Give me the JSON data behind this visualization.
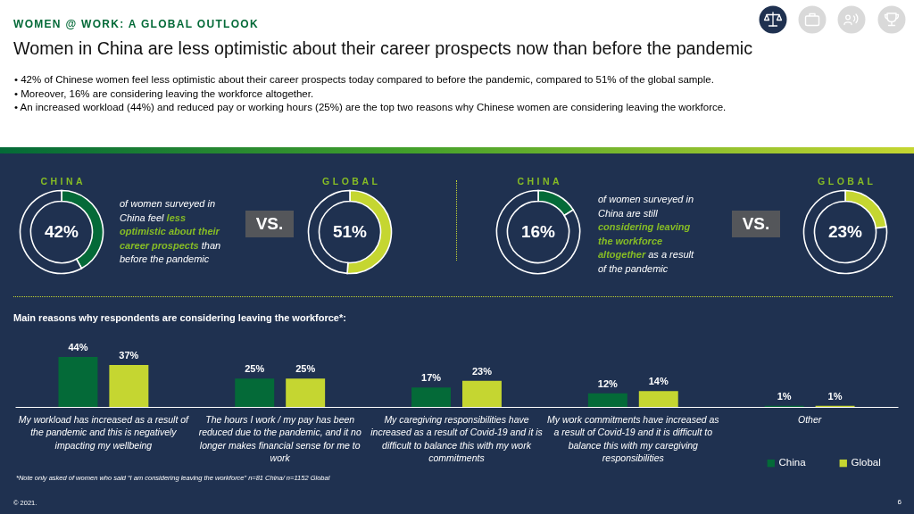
{
  "chart_data": [
    {
      "type": "other",
      "subtitle": "WOMEN @ WORK: A GLOBAL OUTLOOK",
      "title": "Women in China are less optimistic about their career prospects now than before the pandemic",
      "annotations": [
        "• 42% of Chinese women feel less optimistic about their career prospects today compared to before the pandemic, compared to 51% of the global sample.",
        "• Moreover, 16% are considering leaving the workforce altogether.",
        "• An increased workload (44%) and reduced pay or working hours (25%) are the top two reasons why Chinese women are considering leaving the workforce."
      ]
    },
    {
      "type": "donut",
      "title": "CHINA",
      "categories": [
        null,
        null
      ],
      "values": [
        42,
        58
      ],
      "colors": [
        "#046a38",
        "#1f3150"
      ],
      "value_labels": [
        "42%",
        null
      ],
      "annotations": [
        "of women surveyed in China feel",
        "less optimistic about their career prospects",
        "than before the pandemic"
      ]
    },
    {
      "type": "donut",
      "title": "GLOBAL",
      "categories": [
        null,
        null
      ],
      "values": [
        51,
        49
      ],
      "colors": [
        "#c5d631",
        "#1f3150"
      ],
      "value_labels": [
        "51%",
        null
      ],
      "annotations": [
        "VS."
      ]
    },
    {
      "type": "donut",
      "title": "CHINA",
      "categories": [
        null,
        null
      ],
      "values": [
        16,
        84
      ],
      "colors": [
        "#046a38",
        "#1f3150"
      ],
      "value_labels": [
        "16%",
        null
      ],
      "annotations": [
        "of women surveyed in China are still",
        "considering leaving the workforce altogether",
        "as a result of the pandemic"
      ]
    },
    {
      "type": "donut",
      "title": "GLOBAL",
      "categories": [
        null,
        null
      ],
      "values": [
        23,
        77
      ],
      "colors": [
        "#c5d631",
        "#1f3150"
      ],
      "value_labels": [
        "23%",
        null
      ],
      "annotations": [
        "VS."
      ]
    },
    {
      "type": "bar",
      "title": "Main reasons why respondents are considering leaving the workforce*:",
      "categories": [
        "My workload has increased as a result of the pandemic and this is negatively impacting my wellbeing",
        "The hours I work / my pay has been reduced due to the pandemic, and it no longer makes financial sense for me to work",
        "My caregiving responsibilities have increased as a result of Covid-19 and it is difficult to balance this with my work commitments",
        "My work commitments have increased as a result of Covid-19 and it is difficult to balance this with my caregiving responsibilities",
        "Other"
      ],
      "series": [
        {
          "name": "China",
          "color": "#046a38",
          "values": [
            44,
            25,
            17,
            12,
            1
          ],
          "value_labels": [
            "44%",
            "25%",
            "17%",
            "12%",
            "1%"
          ]
        },
        {
          "name": "Global",
          "color": "#c5d631",
          "values": [
            37,
            25,
            23,
            14,
            1
          ],
          "value_labels": [
            "37%",
            "25%",
            "23%",
            "14%",
            "1%"
          ]
        }
      ],
      "tick_labels": "x",
      "legend": "bottom right",
      "annotations": [
        "*Note only asked of women who said “I am considering leaving the workforce” n=81 China/ n=1152 Global",
        "© 2021.",
        "6"
      ]
    }
  ]
}
